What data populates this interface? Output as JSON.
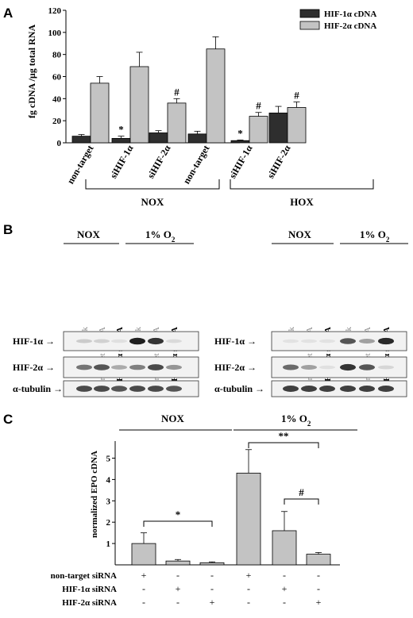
{
  "panels": {
    "a": "A",
    "b": "B",
    "c": "C"
  },
  "chart_data": [
    {
      "type": "bar",
      "ylabel": "fg cDNA /µg total RNA",
      "ylim": [
        0,
        120
      ],
      "yticks": [
        "0",
        "20",
        "40",
        "60",
        "80",
        "100",
        "120"
      ],
      "tick_values": [
        0,
        20,
        40,
        60,
        80,
        100,
        120
      ],
      "categories": [
        "non-target",
        "siHIF-1α",
        "siHIF-2α",
        "non-target",
        "siHIF-1α",
        "siHIF-2α"
      ],
      "groups": [
        {
          "label": "NOX",
          "range": [
            0,
            2
          ]
        },
        {
          "label": "HOX",
          "range": [
            3,
            5
          ]
        }
      ],
      "series": [
        {
          "name": "HIF-1α cDNA",
          "color": "#2e2e2e",
          "values": [
            6,
            4,
            9,
            8,
            2,
            27
          ],
          "errors": [
            1.5,
            2,
            2,
            2.5,
            0.5,
            6
          ]
        },
        {
          "name": "HIF-2α cDNA",
          "color": "#c3c3c3",
          "values": [
            54,
            69,
            36,
            85,
            24,
            32
          ],
          "errors": [
            6,
            13,
            4,
            11,
            3.5,
            5
          ]
        }
      ],
      "annotations": [
        {
          "text": "*",
          "category": 1,
          "series": 0
        },
        {
          "text": "#",
          "category": 2,
          "series": 1
        },
        {
          "text": "*",
          "category": 4,
          "series": 0
        },
        {
          "text": "#",
          "category": 4,
          "series": 1
        },
        {
          "text": "#",
          "category": 5,
          "series": 1
        }
      ]
    },
    {
      "type": "bar",
      "ylabel": "normalized EPO cDNA",
      "ylim": [
        0,
        5.8
      ],
      "yticks": [
        "1",
        "2",
        "3",
        "4",
        "5"
      ],
      "tick_values": [
        1,
        2,
        3,
        4,
        5
      ],
      "groups": [
        {
          "label": "NOX",
          "range": [
            0,
            2
          ]
        },
        {
          "label": "1% O",
          "sub": "2",
          "range": [
            3,
            5
          ]
        }
      ],
      "series": [
        {
          "name": "",
          "color": "#c3c3c3",
          "values": [
            1.0,
            0.18,
            0.1,
            4.3,
            1.6,
            0.5
          ],
          "errors": [
            0.5,
            0.07,
            0.04,
            1.1,
            0.9,
            0.08
          ]
        }
      ],
      "matrix_rows": [
        {
          "label": "non-target siRNA",
          "signs": [
            "+",
            "-",
            "-",
            "+",
            "-",
            "-"
          ]
        },
        {
          "label": "HIF-1α siRNA",
          "signs": [
            "-",
            "+",
            "-",
            "-",
            "+",
            "-"
          ]
        },
        {
          "label": "HIF-2α siRNA",
          "signs": [
            "-",
            "-",
            "+",
            "-",
            "-",
            "+"
          ]
        }
      ],
      "comparisons": [
        {
          "from": 0,
          "to": 2,
          "text": "*"
        },
        {
          "from": 3,
          "to": 5,
          "text": "**"
        },
        {
          "from": 4,
          "to": 5,
          "text": "#"
        }
      ]
    }
  ],
  "blots": [
    {
      "groups": [
        {
          "label": "NOX",
          "sub": ""
        },
        {
          "label": "1% O",
          "sub": "2"
        }
      ],
      "lanes": [
        {
          "label": "mock",
          "bold": false
        },
        {
          "label": "non-target siRNA",
          "bold": false
        },
        {
          "label": "HIF-1α siRNA",
          "bold": true
        },
        {
          "label": "mock",
          "bold": false
        },
        {
          "label": "non-target siRNA",
          "bold": false
        },
        {
          "label": "HIF-1α siRNA",
          "bold": true
        }
      ],
      "rows": [
        {
          "label": "HIF-1α",
          "intensity": [
            0.15,
            0.12,
            0.05,
            0.95,
            0.85,
            0.08
          ]
        },
        {
          "label": "HIF-2α",
          "intensity": [
            0.55,
            0.7,
            0.3,
            0.5,
            0.75,
            0.4
          ]
        },
        {
          "label": "α-tubulin",
          "intensity": [
            0.75,
            0.75,
            0.7,
            0.75,
            0.75,
            0.7
          ]
        }
      ]
    },
    {
      "groups": [
        {
          "label": "NOX",
          "sub": ""
        },
        {
          "label": "1% O",
          "sub": "2"
        }
      ],
      "lanes": [
        {
          "label": "mock",
          "bold": false
        },
        {
          "label": "non-target siRNA",
          "bold": false
        },
        {
          "label": "HIF-2α siRNA",
          "bold": true
        },
        {
          "label": "mock",
          "bold": false
        },
        {
          "label": "non-target siRNA",
          "bold": false
        },
        {
          "label": "HIF-2α siRNA",
          "bold": true
        }
      ],
      "rows": [
        {
          "label": "HIF-1α",
          "intensity": [
            0.04,
            0.04,
            0.04,
            0.7,
            0.35,
            0.9
          ]
        },
        {
          "label": "HIF-2α",
          "intensity": [
            0.6,
            0.35,
            0.05,
            0.85,
            0.7,
            0.1
          ]
        },
        {
          "label": "α-tubulin",
          "intensity": [
            0.8,
            0.8,
            0.8,
            0.8,
            0.8,
            0.8
          ]
        }
      ]
    }
  ],
  "arrow": "→"
}
